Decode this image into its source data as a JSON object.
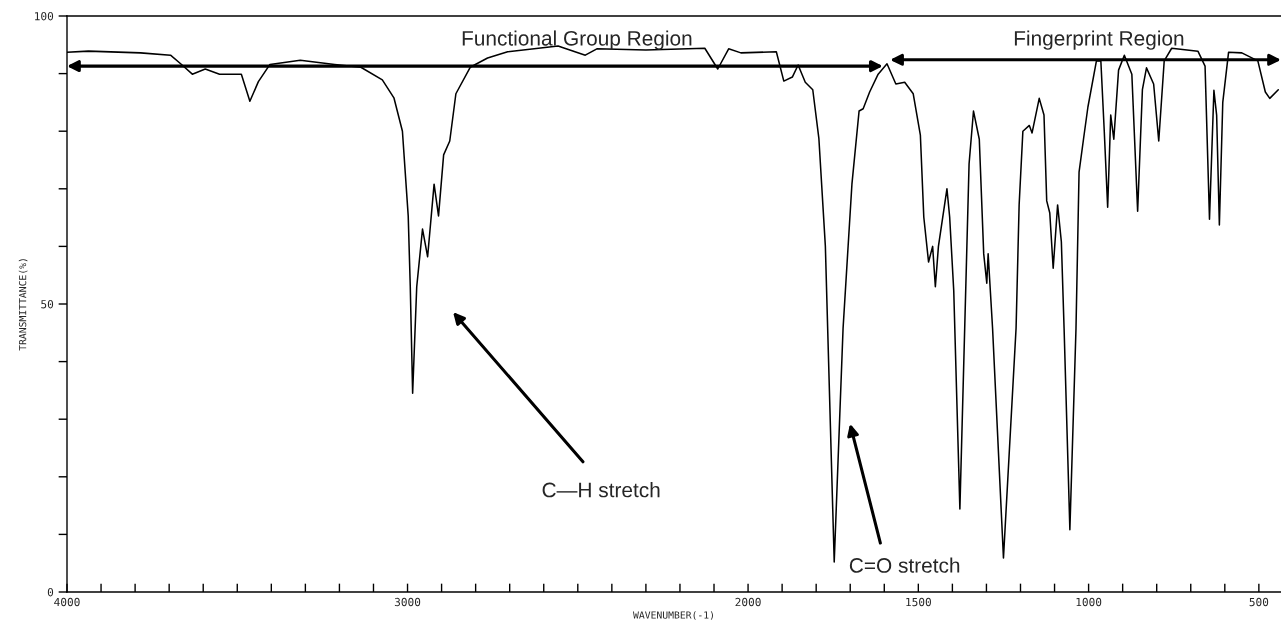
{
  "chart_data": {
    "type": "line",
    "xlabel": "WAVENUMBER(-1)",
    "ylabel": "TRANSMITTANCE(%)",
    "x": [
      4000,
      3937,
      3784,
      3696,
      3662,
      3632,
      3594,
      3552,
      3488,
      3463,
      3438,
      3404,
      3315,
      3214,
      3137,
      3074,
      3040,
      3015,
      2998,
      2992,
      2985,
      2973,
      2956,
      2941,
      2922,
      2909,
      2894,
      2876,
      2858,
      2816,
      2765,
      2706,
      2558,
      2478,
      2444,
      2300,
      2127,
      2089,
      2057,
      2021,
      1917,
      1895,
      1870,
      1853,
      1832,
      1810,
      1792,
      1773,
      1747,
      1721,
      1695,
      1674,
      1662,
      1643,
      1618,
      1592,
      1566,
      1540,
      1515,
      1494,
      1484,
      1470,
      1458,
      1450,
      1441,
      1416,
      1408,
      1396,
      1378,
      1351,
      1338,
      1321,
      1308,
      1299,
      1295,
      1282,
      1250,
      1213,
      1204,
      1193,
      1174,
      1166,
      1145,
      1131,
      1123,
      1114,
      1104,
      1091,
      1080,
      1072,
      1055,
      1037,
      1028,
      1015,
      1002,
      977,
      964,
      954,
      944,
      935,
      926,
      912,
      895,
      873,
      856,
      842,
      830,
      809,
      794,
      778,
      756,
      679,
      658,
      645,
      632,
      624,
      616,
      606,
      589,
      550,
      503,
      481,
      468,
      443
    ],
    "series": [
      {
        "color": "#000000",
        "values": [
          93.7,
          93.9,
          93.6,
          93.2,
          91.5,
          89.9,
          90.8,
          89.9,
          89.9,
          85.2,
          88.6,
          91.6,
          92.3,
          91.6,
          91.1,
          88.9,
          85.8,
          80.0,
          65.3,
          53.1,
          34.5,
          53.0,
          63.0,
          58.2,
          70.8,
          65.3,
          75.9,
          78.3,
          86.5,
          91.1,
          92.7,
          93.8,
          94.8,
          93.2,
          94.3,
          94.1,
          94.4,
          90.8,
          94.3,
          93.6,
          93.8,
          88.7,
          89.4,
          91.5,
          88.5,
          87.2,
          78.7,
          60.0,
          5.2,
          45.8,
          70.8,
          83.5,
          83.9,
          86.8,
          89.9,
          91.7,
          88.2,
          88.5,
          86.5,
          79.3,
          65.1,
          57.3,
          60.0,
          53.0,
          60.0,
          70.0,
          65.1,
          52.3,
          14.4,
          74.3,
          83.5,
          78.6,
          58.7,
          53.6,
          58.7,
          45.8,
          5.9,
          45.8,
          67.2,
          80.0,
          81.0,
          79.7,
          85.7,
          82.8,
          67.9,
          65.8,
          56.2,
          67.2,
          60.8,
          45.8,
          10.8,
          45.8,
          72.9,
          78.6,
          84.2,
          92.2,
          92.2,
          80.0,
          66.8,
          82.8,
          78.6,
          90.6,
          93.2,
          89.9,
          66.1,
          87.2,
          91.0,
          88.2,
          78.3,
          92.2,
          94.4,
          93.9,
          91.3,
          64.7,
          87.1,
          82.8,
          63.7,
          85.0,
          93.7,
          93.6,
          92.2,
          86.8,
          85.7,
          87.2
        ]
      }
    ],
    "xlim": [
      4000,
      435
    ],
    "xticks": [
      4000,
      {
        "value": 3900,
        "label": null
      },
      {
        "value": 3800,
        "label": null
      },
      {
        "value": 3700,
        "label": null
      },
      {
        "value": 3600,
        "label": null
      },
      {
        "value": 3500,
        "label": null
      },
      {
        "value": 3400,
        "label": null
      },
      {
        "value": 3300,
        "label": null
      },
      {
        "value": 3200,
        "label": null
      },
      {
        "value": 3100,
        "label": null
      },
      3000,
      {
        "value": 2900,
        "label": null
      },
      {
        "value": 2800,
        "label": null
      },
      {
        "value": 2700,
        "label": null
      },
      {
        "value": 2600,
        "label": null
      },
      {
        "value": 2500,
        "label": null
      },
      {
        "value": 2400,
        "label": null
      },
      {
        "value": 2300,
        "label": null
      },
      {
        "value": 2200,
        "label": null
      },
      {
        "value": 2100,
        "label": null
      },
      2000,
      {
        "value": 1900,
        "label": null
      },
      {
        "value": 1800,
        "label": null
      },
      {
        "value": 1700,
        "label": null
      },
      {
        "value": 1600,
        "label": null
      },
      1500,
      {
        "value": 1400,
        "label": null
      },
      {
        "value": 1300,
        "label": null
      },
      {
        "value": 1200,
        "label": null
      },
      {
        "value": 1100,
        "label": null
      },
      1000,
      {
        "value": 900,
        "label": null
      },
      {
        "value": 800,
        "label": null
      },
      {
        "value": 700,
        "label": null
      },
      {
        "value": 600,
        "label": null
      },
      500
    ],
    "ylim": [
      0,
      100
    ],
    "yticks": [
      0,
      {
        "value": 10,
        "label": null
      },
      {
        "value": 20,
        "label": null
      },
      {
        "value": 30,
        "label": null
      },
      {
        "value": 40,
        "label": null
      },
      50,
      {
        "value": 60,
        "label": null
      },
      {
        "value": 70,
        "label": null
      },
      {
        "value": 80,
        "label": null
      },
      {
        "value": 90,
        "label": null
      },
      100
    ],
    "annotations": [
      "Functional Group Region",
      "Fingerprint Region",
      "C—H stretch",
      "C=O stretch"
    ],
    "grid": false,
    "legend": false,
    "marker": "none",
    "line_style": "solid"
  }
}
